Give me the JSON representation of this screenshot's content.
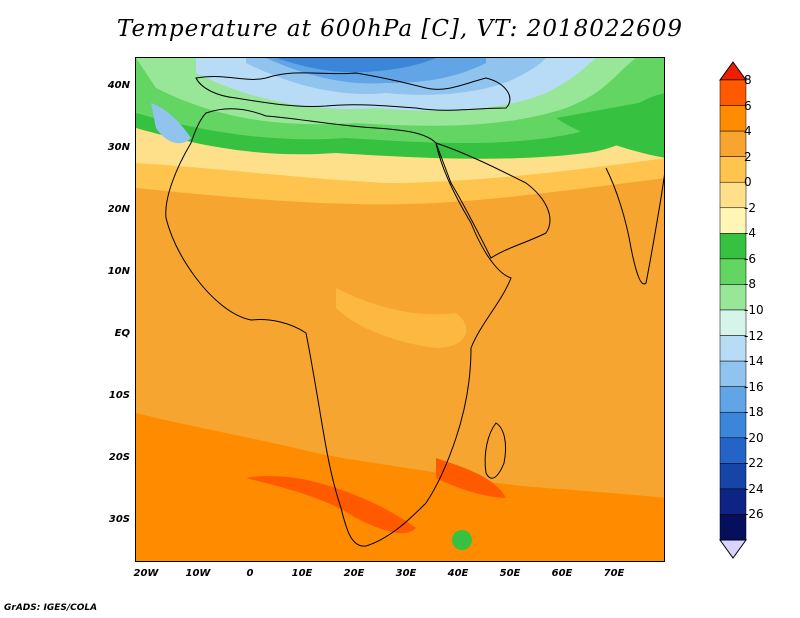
{
  "title": "Temperature at 600hPa [C], VT: 2018022609",
  "footer": "GrADS: IGES/COLA",
  "map": {
    "lat_ticks": [
      "40N",
      "30N",
      "20N",
      "10N",
      "EQ",
      "10S",
      "20S",
      "30S"
    ],
    "lon_ticks": [
      "20W",
      "10W",
      "0",
      "10E",
      "20E",
      "30E",
      "40E",
      "50E",
      "60E",
      "70E"
    ],
    "lon_range": [
      -22,
      80
    ],
    "lat_range": [
      -37,
      44.5
    ]
  },
  "colorbar": {
    "levels": [
      "8",
      "6",
      "4",
      "2",
      "0",
      "-2",
      "-4",
      "-6",
      "-8",
      "-10",
      "-12",
      "-14",
      "-16",
      "-18",
      "-20",
      "-22",
      "-24",
      "-26"
    ],
    "colors": [
      "#ee1f00",
      "#ff5a00",
      "#ff8c00",
      "#f7a531",
      "#ffc44d",
      "#ffe08a",
      "#fff5b5",
      "#36c140",
      "#63d562",
      "#98e697",
      "#d6f5ea",
      "#b8dcf5",
      "#90c4ef",
      "#62a5e6",
      "#3c86da",
      "#2364c6",
      "#1744a7",
      "#0d2484",
      "#060f5c",
      "#d8d3ff"
    ]
  },
  "chart_data": {
    "type": "heatmap",
    "title": "Temperature at 600hPa [C], VT: 2018022609",
    "variable": "Temperature at 600hPa",
    "units": "C",
    "valid_time": "2018022609",
    "region": "Africa and surroundings",
    "lon_ticks": [
      "20W",
      "10W",
      "0",
      "10E",
      "20E",
      "30E",
      "40E",
      "50E",
      "60E",
      "70E"
    ],
    "lat_ticks": [
      "40N",
      "30N",
      "20N",
      "10N",
      "EQ",
      "10S",
      "20S",
      "30S"
    ],
    "lon_range": [
      -22,
      80
    ],
    "lat_range": [
      -37,
      44.5
    ],
    "contour_levels": [
      8,
      6,
      4,
      2,
      0,
      -2,
      -4,
      -6,
      -8,
      -10,
      -12,
      -14,
      -16,
      -18,
      -20,
      -22,
      -24,
      -26
    ]
  }
}
